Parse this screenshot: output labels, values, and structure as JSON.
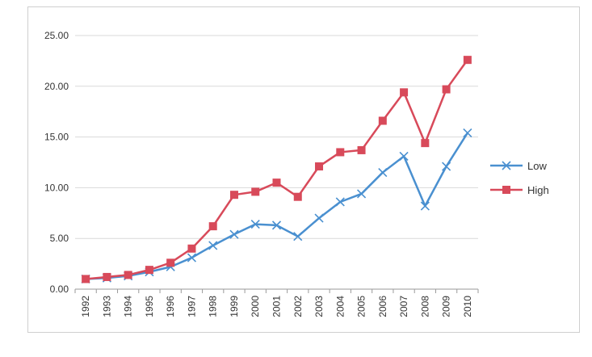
{
  "chart_data": {
    "type": "line",
    "title": "",
    "xlabel": "",
    "ylabel": "",
    "x": [
      "1992",
      "1993",
      "1994",
      "1995",
      "1996",
      "1997",
      "1998",
      "1999",
      "2000",
      "2001",
      "2002",
      "2003",
      "2004",
      "2005",
      "2006",
      "2007",
      "2008",
      "2009",
      "2010"
    ],
    "ylim": [
      0,
      25
    ],
    "yticks": [
      "0.00",
      "5.00",
      "10.00",
      "15.00",
      "20.00",
      "25.00"
    ],
    "grid": true,
    "legend_position": "right",
    "series": [
      {
        "name": "Low",
        "color": "#4a90d0",
        "marker": "x",
        "values": [
          1.0,
          1.1,
          1.3,
          1.7,
          2.2,
          3.1,
          4.3,
          5.4,
          6.4,
          6.3,
          5.2,
          7.0,
          8.6,
          9.4,
          11.5,
          13.1,
          8.2,
          12.1,
          15.4
        ]
      },
      {
        "name": "High",
        "color": "#d84a5a",
        "marker": "square",
        "values": [
          1.0,
          1.2,
          1.4,
          1.9,
          2.6,
          4.0,
          6.2,
          9.3,
          9.6,
          10.5,
          9.1,
          12.1,
          13.5,
          13.7,
          16.6,
          19.4,
          14.4,
          19.7,
          22.6
        ]
      }
    ]
  }
}
